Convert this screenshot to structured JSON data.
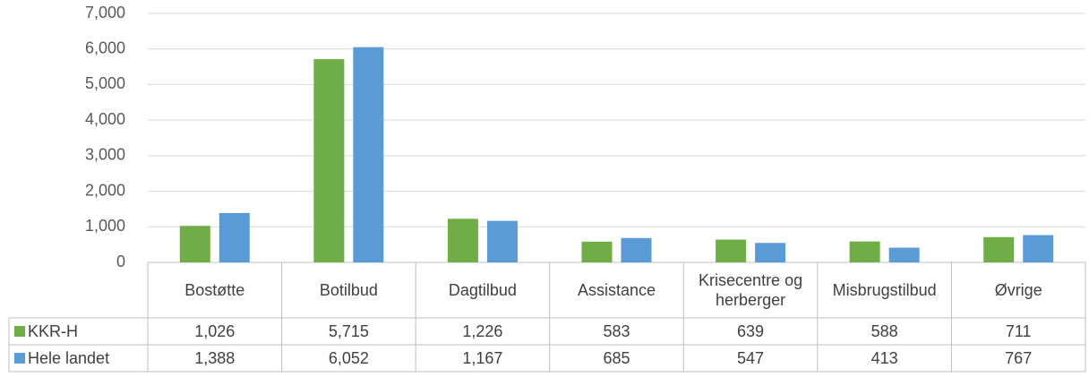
{
  "chart_data": {
    "type": "bar",
    "categories": [
      "Bostøtte",
      "Botilbud",
      "Dagtilbud",
      "Assistance",
      "Krisecentre og herberger",
      "Misbrugstilbud",
      "Øvrige"
    ],
    "series": [
      {
        "name": "KKR-H",
        "color": "#70ad47",
        "values": [
          1026,
          5715,
          1226,
          583,
          639,
          588,
          711
        ],
        "value_labels": [
          "1,026",
          "5,715",
          "1,226",
          "583",
          "639",
          "588",
          "711"
        ]
      },
      {
        "name": "Hele landet",
        "color": "#5b9bd5",
        "values": [
          1388,
          6052,
          1167,
          685,
          547,
          413,
          767
        ],
        "value_labels": [
          "1,388",
          "6,052",
          "1,167",
          "685",
          "547",
          "413",
          "767"
        ]
      }
    ],
    "ylim": [
      0,
      7000
    ],
    "yticks": [
      0,
      {
        "value": 1000,
        "label": "1,000"
      },
      {
        "value": 2000,
        "label": "2,000"
      },
      {
        "value": 3000,
        "label": "3,000"
      },
      {
        "value": 4000,
        "label": "4,000"
      },
      {
        "value": 5000,
        "label": "5,000"
      },
      {
        "value": 6000,
        "label": "6,000"
      },
      {
        "value": 7000,
        "label": "7,000"
      }
    ],
    "grid": true
  }
}
